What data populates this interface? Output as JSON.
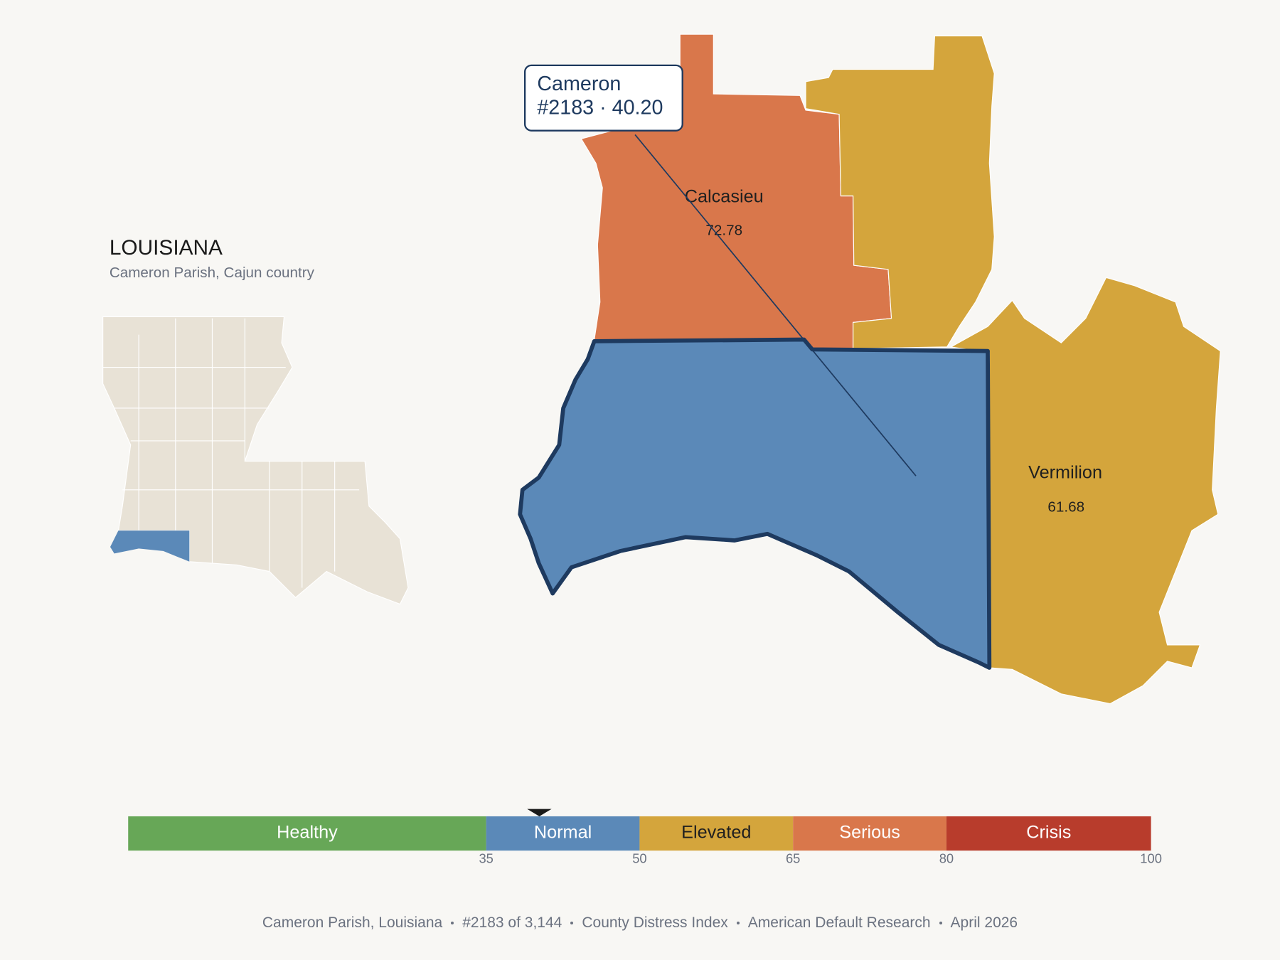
{
  "header": {
    "title": "LOUISIANA",
    "subtitle": "Cameron Parish, Cajun country"
  },
  "map": {
    "parishes": [
      {
        "name": "Calcasieu",
        "value": "72.78",
        "color": "#D9774B"
      },
      {
        "name": "Vermilion",
        "value": "61.68",
        "color": "#D4A53C"
      }
    ],
    "selected_color": "#5B89B8"
  },
  "tooltip": {
    "title": "Cameron",
    "detail": "#2183 · 40.20"
  },
  "legend": {
    "range": [
      0,
      100
    ],
    "ticks": [
      35,
      50,
      65,
      80,
      100
    ],
    "marker": 40.2,
    "bands": [
      {
        "label": "Healthy",
        "color": "#67A757",
        "text_color": "#ffffff"
      },
      {
        "label": "Normal",
        "color": "#5B89B8",
        "text_color": "#ffffff"
      },
      {
        "label": "Elevated",
        "color": "#D4A53C",
        "text_color": "#1f1f1f"
      },
      {
        "label": "Serious",
        "color": "#D9774B",
        "text_color": "#ffffff"
      },
      {
        "label": "Crisis",
        "color": "#B83C2C",
        "text_color": "#ffffff"
      }
    ]
  },
  "footer": [
    "Cameron Parish, Louisiana",
    "#2183 of 3,144",
    "County Distress Index",
    "American Default Research",
    "April 2026"
  ]
}
